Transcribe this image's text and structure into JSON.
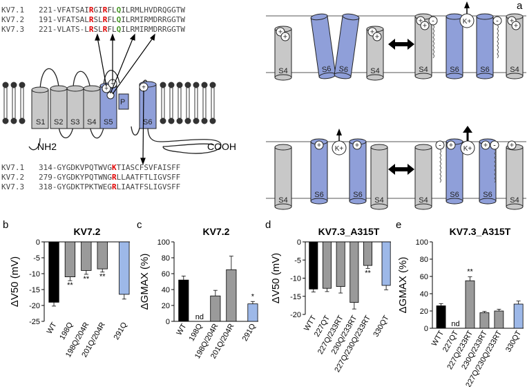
{
  "panel_labels": [
    "a",
    "b",
    "c",
    "d",
    "e"
  ],
  "colors": {
    "gray_helix": "#c8c8c8",
    "blue_helix": "#8f9fd9",
    "red_residue": "#e00000",
    "green_residue": "#4a9a2a",
    "bar_wt": "#000000",
    "bar_mut": "#9a9a9a",
    "bar_ctrl": "#9db8e8"
  },
  "alignment_top": [
    {
      "name": "KV7.1",
      "pre": "221-VFATSAI",
      "r1": "R",
      "mid": "GI",
      "r2": "R",
      "mid2": "FL",
      "q": "Q",
      "post": "ILRMLHVDRQGGTW"
    },
    {
      "name": "KV7.2",
      "pre": "191-VFATSAL",
      "r1": "R",
      "mid": "SL",
      "r2": "R",
      "mid2": "FL",
      "q": "Q",
      "post": "ILRMIRMDRRGGTW"
    },
    {
      "name": "KV7.3",
      "pre": "221-VLATS-L",
      "r1": "R",
      "mid": "SL",
      "r2": "R",
      "mid2": "FL",
      "q": "Q",
      "post": "ILRMIRMDRRGGTW"
    }
  ],
  "alignment_bottom": [
    {
      "name": "KV7.1",
      "pre": "314-GYGDKVPQTWVG",
      "k": "K",
      "post": "TIASCFSVFAISFF"
    },
    {
      "name": "KV7.2",
      "pre": "279-GYGDKYPQTWNG",
      "k": "R",
      "post": "LLAATFTLIGVSFF"
    },
    {
      "name": "KV7.3",
      "pre": "318-GYGDKTPKTWEG",
      "k": "R",
      "post": "LIAATFSLIGVSFF"
    }
  ],
  "topology": {
    "segments": [
      "S1",
      "S2",
      "S3",
      "S4",
      "S5",
      "P",
      "S6"
    ],
    "nh2": "NH2",
    "cooh": "COOH"
  },
  "states": {
    "s4": "S4",
    "s6": "S6",
    "k_ion": "K+"
  },
  "chart_data": [
    {
      "panel": "b",
      "type": "bar",
      "title": "KV7.2",
      "ylabel": "ΔV50 (mV)",
      "ylim": [
        -25,
        0
      ],
      "yticks": [
        0,
        -5,
        -10,
        -15,
        -20,
        -25
      ],
      "categories": [
        "WT",
        "198Q",
        "198Q/204R",
        "201Q/204R",
        "291Q"
      ],
      "values": [
        -19,
        -11,
        -9,
        -8.5,
        -16.5
      ],
      "errors": [
        1.2,
        1.2,
        1.2,
        1.0,
        1.5
      ],
      "annotations": [
        "",
        "**",
        "**",
        "**",
        ""
      ]
    },
    {
      "panel": "c",
      "type": "bar",
      "title": "KV7.2",
      "ylabel": "ΔGMAX (%)",
      "ylim": [
        0,
        100
      ],
      "yticks": [
        0,
        20,
        40,
        60,
        80,
        100
      ],
      "categories": [
        "WT",
        "198Q",
        "198Q/204R",
        "201Q/204R",
        "291Q"
      ],
      "values": [
        52,
        null,
        32,
        65,
        22
      ],
      "errors": [
        5,
        0,
        7,
        17,
        3
      ],
      "annotations": [
        "",
        "nd",
        "",
        "",
        "*"
      ]
    },
    {
      "panel": "d",
      "type": "bar",
      "title": "KV7.3_A315T",
      "ylabel": "ΔV50 (mV)",
      "ylim": [
        -20,
        0
      ],
      "yticks": [
        0,
        -5,
        -10,
        -15,
        -20
      ],
      "categories": [
        "WTT",
        "227QT",
        "227Q/233RT",
        "230Q/233RT",
        "227Q/230Q/233RT",
        "330QT"
      ],
      "values": [
        -13,
        -12.8,
        -12.3,
        -16.7,
        -6.5,
        -12
      ],
      "errors": [
        0.8,
        0.9,
        1.8,
        1.8,
        0.8,
        1.2
      ],
      "annotations": [
        "",
        "",
        "",
        "",
        "**",
        ""
      ]
    },
    {
      "panel": "e",
      "type": "bar",
      "title": "KV7.3_A315T",
      "ylabel": "ΔGMAX (%)",
      "ylim": [
        0,
        100
      ],
      "yticks": [
        0,
        20,
        40,
        60,
        80,
        100
      ],
      "categories": [
        "WTT",
        "227QT",
        "227Q/233RT",
        "230Q/233RT",
        "227Q/230Q/233RT",
        "330QT"
      ],
      "values": [
        26,
        null,
        55,
        18,
        20,
        28
      ],
      "errors": [
        2.5,
        0,
        4.5,
        1.5,
        2,
        3.5
      ],
      "annotations": [
        "",
        "nd",
        "**",
        "",
        "",
        ""
      ]
    }
  ]
}
